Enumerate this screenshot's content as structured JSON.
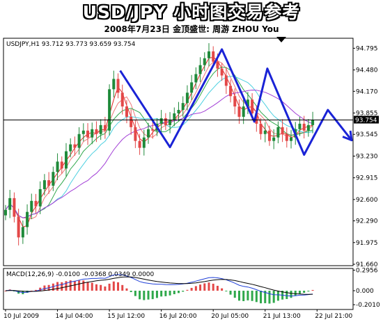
{
  "header": {
    "title": "USD/JPY 小时图交易参考",
    "subtitle": "2008年7月23日   金顶盛世: 周游 ZHOU You"
  },
  "chart_data": [
    {
      "type": "candlestick",
      "info_label": "USDJPY,H1  93.712 93.773 93.659 93.754",
      "symbol": "USDJPY,H1",
      "last_bar": {
        "open": 93.712,
        "high": 93.773,
        "low": 93.659,
        "close": 93.754
      },
      "current_price": 93.754,
      "current_price_label": "93.754",
      "ylim": [
        91.66,
        94.92
      ],
      "y_ticks": [
        94.795,
        94.48,
        94.17,
        93.855,
        93.545,
        93.23,
        92.915,
        92.6,
        92.29,
        91.975,
        91.66
      ],
      "y_tick_labels": [
        "94.795",
        "94.480",
        "94.170",
        "93.855",
        "93.545",
        "93.230",
        "92.915",
        "92.600",
        "92.290",
        "91.975",
        "91.660"
      ],
      "x_tick_labels": [
        "10 Jul 2009",
        "14 Jul 04:00",
        "15 Jul 12:00",
        "16 Jul 20:00",
        "20 Jul 05:00",
        "21 Jul 13:00",
        "22 Jul 21:00"
      ],
      "x_tick_positions": [
        0,
        12,
        24,
        36,
        48,
        60,
        72
      ],
      "closes": [
        92.45,
        92.62,
        92.35,
        92.05,
        92.2,
        92.42,
        92.58,
        92.5,
        92.75,
        92.88,
        92.8,
        93.0,
        93.15,
        93.05,
        93.3,
        93.4,
        93.35,
        93.55,
        93.6,
        93.5,
        93.62,
        93.55,
        93.68,
        93.6,
        94.2,
        94.35,
        94.15,
        93.95,
        93.8,
        93.65,
        93.45,
        93.35,
        93.5,
        93.62,
        93.6,
        93.7,
        93.78,
        93.68,
        93.75,
        93.85,
        93.9,
        94.0,
        94.15,
        94.3,
        94.42,
        94.55,
        94.65,
        94.75,
        94.6,
        94.5,
        94.4,
        94.25,
        94.1,
        93.95,
        93.8,
        93.95,
        94.05,
        93.85,
        93.7,
        93.55,
        93.6,
        93.45,
        93.5,
        93.65,
        93.55,
        93.45,
        93.5,
        93.62,
        93.7,
        93.6,
        93.68,
        93.754
      ],
      "overlay": {
        "type": "line",
        "name": "trend",
        "color": "#1a23d6",
        "points": [
          [
            26.5,
            94.47
          ],
          [
            38,
            93.36
          ],
          [
            50,
            94.78
          ],
          [
            57.5,
            93.73
          ],
          [
            60.5,
            94.5
          ],
          [
            69,
            93.25
          ],
          [
            74.5,
            93.9
          ],
          [
            80,
            93.46
          ]
        ]
      },
      "ma_colors": [
        "#e32828",
        "#f07a7a",
        "#2fa84b",
        "#4dd0e0",
        "#a23fd6"
      ]
    },
    {
      "type": "bar",
      "indicator": "MACD(12,26,9)",
      "info_label": "MACD(12,26,9) -0.0100 -0.0368 0.0349 0.0000",
      "ylim": [
        -0.25,
        0.3
      ],
      "y_ticks": [
        0.2956,
        0.0,
        -0.201
      ],
      "y_tick_labels": [
        "0.2956",
        "0.000",
        "-0.2010"
      ],
      "colors": {
        "positive": "#e34848",
        "negative": "#2fa84b",
        "macd_line": "#1f3fd8",
        "signal_line": "#000000"
      }
    }
  ]
}
